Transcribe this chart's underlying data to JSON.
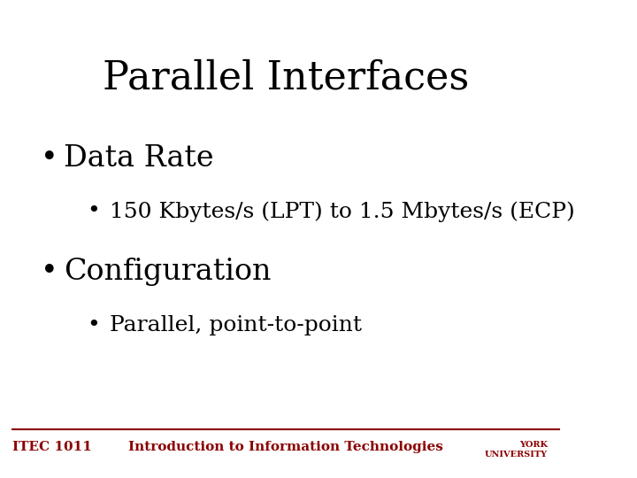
{
  "title": "Parallel Interfaces",
  "title_fontsize": 32,
  "title_color": "#000000",
  "title_font": "serif",
  "bg_color": "#ffffff",
  "bullet1": "Data Rate",
  "bullet1_fontsize": 24,
  "bullet1_color": "#000000",
  "subbullet1": "150 Kbytes/s (LPT) to 1.5 Mbytes/s (ECP)",
  "subbullet1_fontsize": 18,
  "subbullet1_color": "#000000",
  "bullet2": "Configuration",
  "bullet2_fontsize": 24,
  "bullet2_color": "#000000",
  "subbullet2": "Parallel, point-to-point",
  "subbullet2_fontsize": 18,
  "subbullet2_color": "#000000",
  "footer_left": "ITEC 1011",
  "footer_center": "Introduction to Information Technologies",
  "footer_color": "#8B0000",
  "footer_fontsize": 11,
  "footer_font": "serif",
  "line_color": "#8B0000",
  "bullet_font": "serif"
}
